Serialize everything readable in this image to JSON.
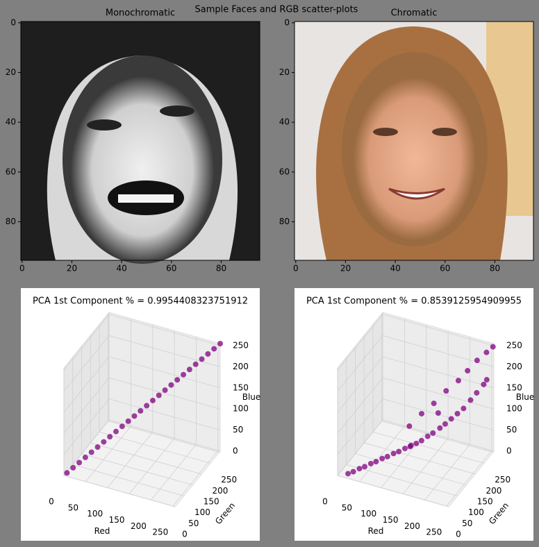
{
  "title": "Sample Faces and RGB scatter-plots",
  "chart_data": [
    {
      "type": "image",
      "title": "Monochromatic",
      "xlim": [
        -0.5,
        95.5
      ],
      "ylim": [
        95.5,
        -0.5
      ],
      "xticks": [
        0,
        20,
        40,
        60,
        80
      ],
      "yticks": [
        0,
        20,
        40,
        60,
        80
      ]
    },
    {
      "type": "image",
      "title": "Chromatic",
      "xlim": [
        -0.5,
        95.5
      ],
      "ylim": [
        95.5,
        -0.5
      ],
      "xticks": [
        0,
        20,
        40,
        60,
        80
      ],
      "yticks": [
        0,
        20,
        40,
        60,
        80
      ]
    },
    {
      "type": "scatter3d",
      "title": "PCA 1st Component % = 0.9954408323751912",
      "xlabel": "Red",
      "ylabel": "Green",
      "zlabel": "Blue",
      "color": "#800080",
      "xlim": [
        0,
        255
      ],
      "ylim": [
        0,
        255
      ],
      "zlim": [
        0,
        255
      ],
      "xticks": [
        0,
        50,
        100,
        150,
        200,
        250
      ],
      "yticks": [
        0,
        50,
        100,
        150,
        200,
        250
      ],
      "zticks": [
        0,
        50,
        100,
        150,
        200,
        250
      ],
      "x": [
        5,
        15,
        25,
        35,
        45,
        55,
        65,
        75,
        85,
        95,
        105,
        115,
        125,
        135,
        145,
        155,
        165,
        175,
        185,
        195,
        205,
        215,
        225,
        235,
        245,
        255
      ],
      "y": [
        5,
        15,
        25,
        35,
        45,
        55,
        65,
        75,
        85,
        95,
        105,
        115,
        125,
        135,
        145,
        155,
        165,
        175,
        185,
        195,
        205,
        215,
        225,
        235,
        245,
        255
      ],
      "z": [
        5,
        15,
        25,
        35,
        45,
        55,
        65,
        75,
        85,
        95,
        105,
        115,
        125,
        135,
        145,
        155,
        165,
        175,
        185,
        195,
        205,
        215,
        225,
        235,
        245,
        255
      ]
    },
    {
      "type": "scatter3d",
      "title": "PCA 1st Component % = 0.8539125954909955",
      "xlabel": "Red",
      "ylabel": "Green",
      "zlabel": "Blue",
      "color": "#800080",
      "xlim": [
        0,
        255
      ],
      "ylim": [
        0,
        255
      ],
      "zlim": [
        0,
        255
      ],
      "xticks": [
        0,
        50,
        100,
        150,
        200,
        250
      ],
      "yticks": [
        0,
        50,
        100,
        150,
        200,
        250
      ],
      "zticks": [
        0,
        50,
        100,
        150,
        200,
        250
      ],
      "x": [
        20,
        30,
        40,
        50,
        60,
        70,
        80,
        90,
        100,
        110,
        120,
        130,
        140,
        150,
        160,
        170,
        180,
        190,
        200,
        210,
        220,
        230,
        240,
        250,
        255,
        120,
        140,
        160,
        180,
        200,
        215,
        230,
        245,
        255,
        130,
        170
      ],
      "y": [
        10,
        15,
        25,
        30,
        40,
        45,
        55,
        60,
        70,
        75,
        85,
        90,
        100,
        105,
        115,
        120,
        135,
        140,
        150,
        160,
        170,
        185,
        195,
        210,
        215,
        110,
        130,
        150,
        170,
        190,
        205,
        222,
        238,
        250,
        95,
        150
      ],
      "z": [
        5,
        10,
        15,
        20,
        25,
        30,
        35,
        40,
        45,
        50,
        55,
        60,
        65,
        72,
        80,
        88,
        95,
        105,
        115,
        125,
        135,
        150,
        165,
        180,
        190,
        95,
        120,
        140,
        165,
        185,
        205,
        225,
        240,
        250,
        60,
        120
      ]
    }
  ]
}
